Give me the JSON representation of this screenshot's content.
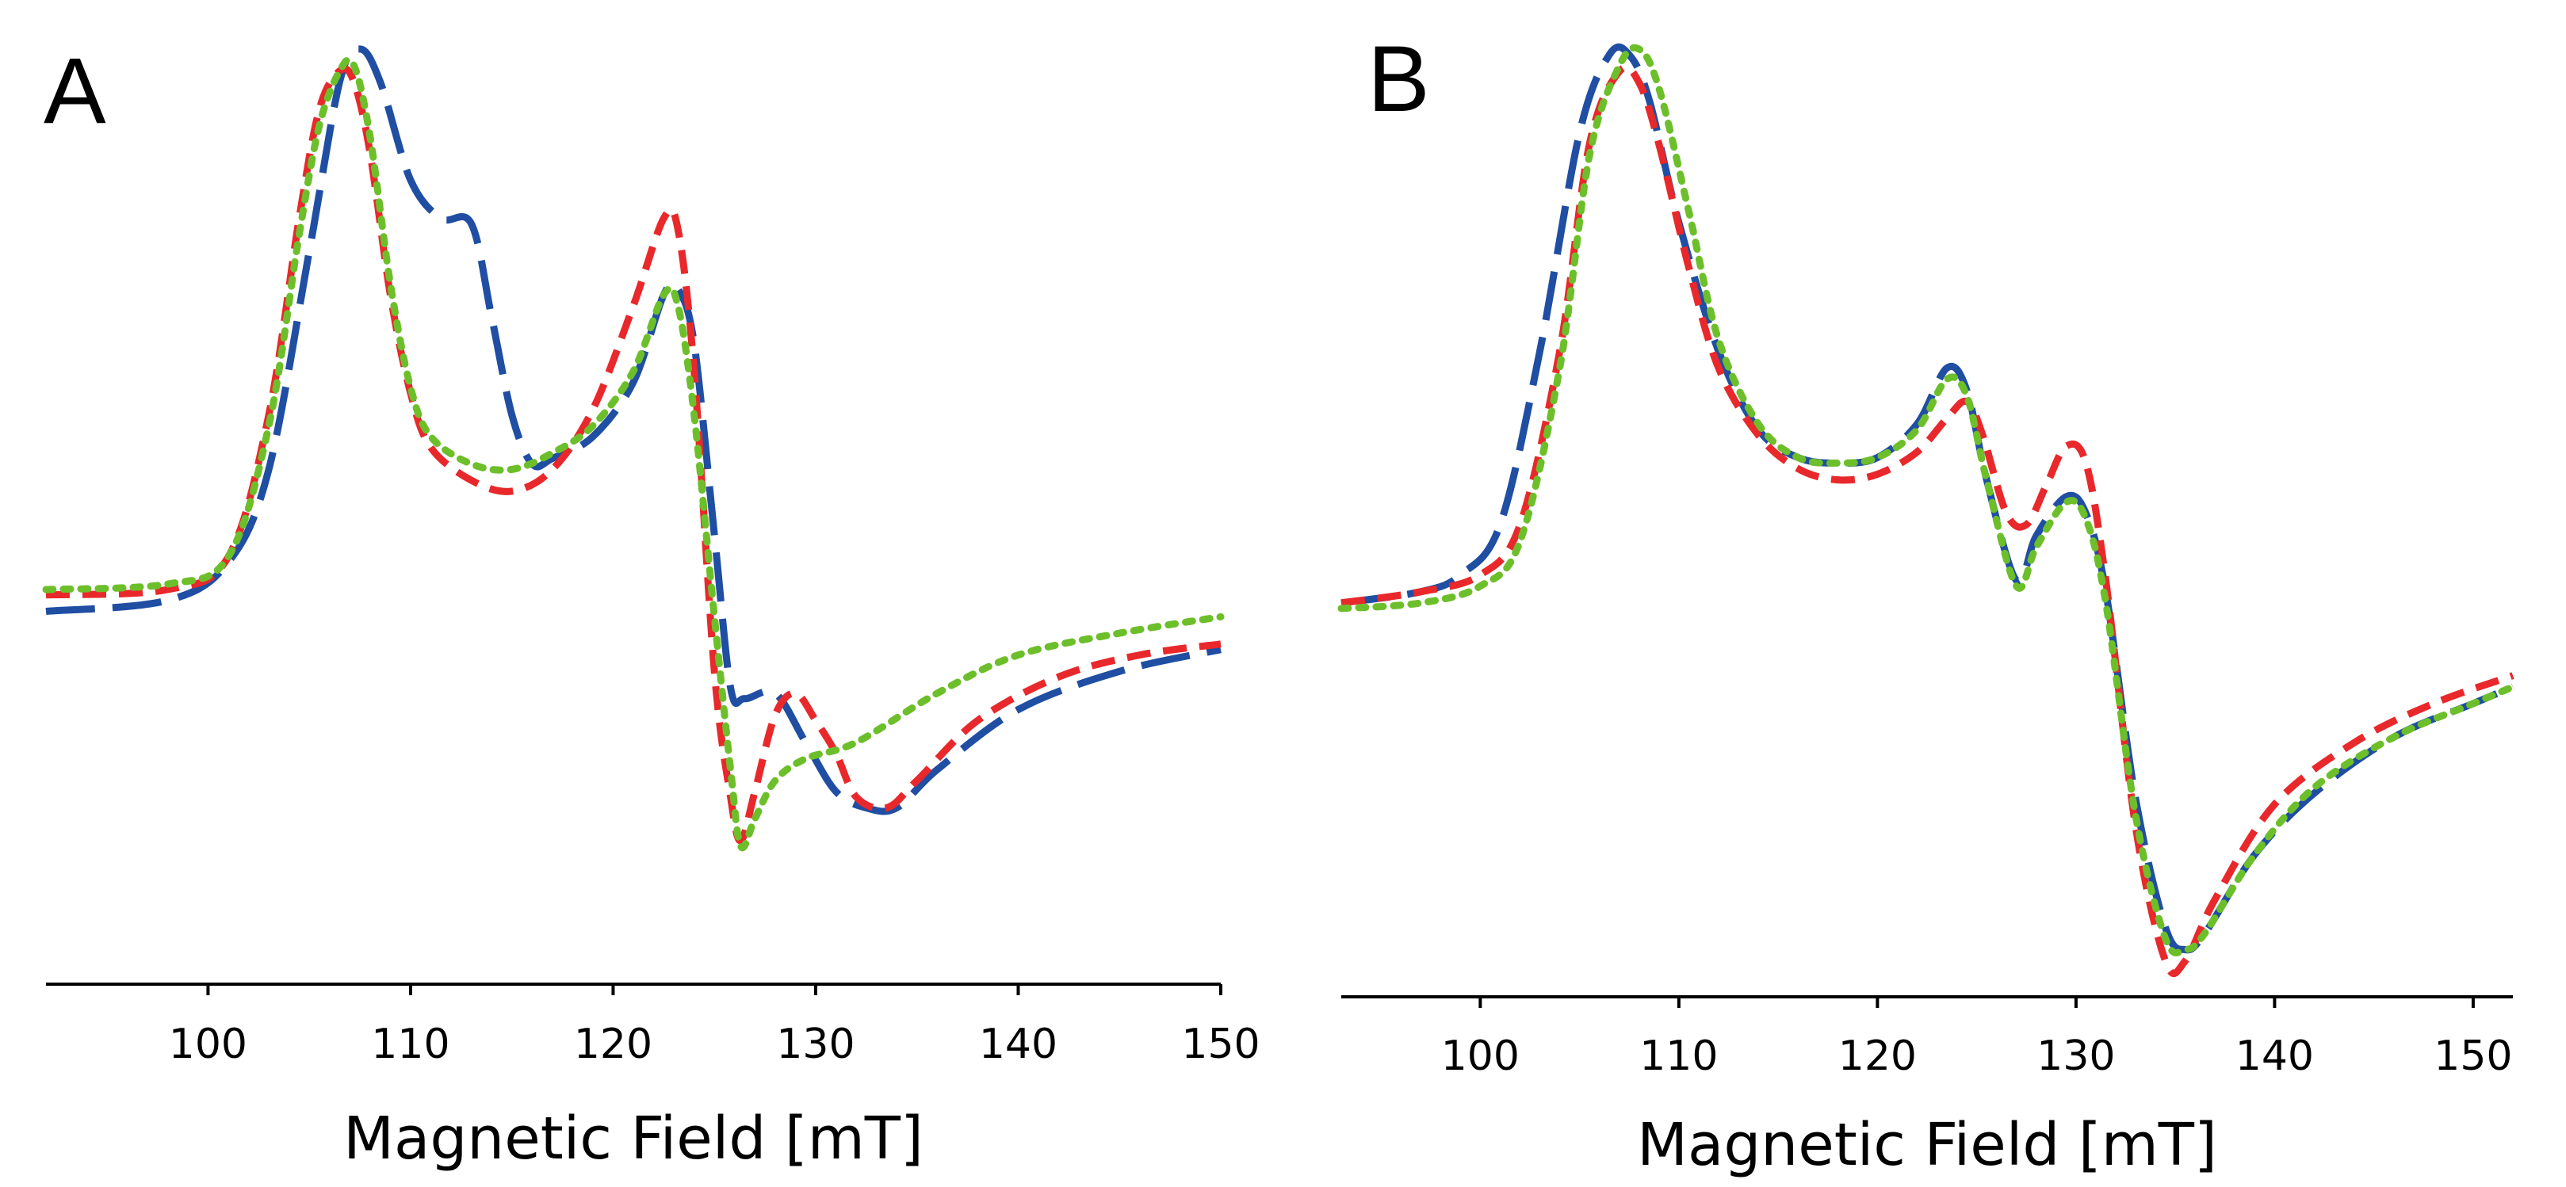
{
  "chart_data": [
    {
      "type": "line",
      "panel_label": "A",
      "xlabel": "Magnetic Field [mT]",
      "ylabel": "",
      "xlim": [
        92,
        150
      ],
      "ylim": [
        -0.72,
        1.0
      ],
      "xticks": [
        100,
        110,
        120,
        130,
        140,
        150
      ],
      "yaxis_visible": false,
      "grid": false,
      "legend": "none",
      "series": [
        {
          "color": "#1f4ea3",
          "dash": "long-dash",
          "points": [
            [
              92,
              -0.04
            ],
            [
              98,
              -0.02
            ],
            [
              101,
              0.05
            ],
            [
              103,
              0.22
            ],
            [
              105,
              0.62
            ],
            [
              106.5,
              0.93
            ],
            [
              107.5,
              0.99
            ],
            [
              108.5,
              0.93
            ],
            [
              110,
              0.75
            ],
            [
              111.5,
              0.68
            ],
            [
              113,
              0.67
            ],
            [
              114,
              0.5
            ],
            [
              115,
              0.32
            ],
            [
              116,
              0.23
            ],
            [
              117,
              0.24
            ],
            [
              119,
              0.28
            ],
            [
              121,
              0.38
            ],
            [
              122.5,
              0.54
            ],
            [
              123.2,
              0.55
            ],
            [
              124,
              0.45
            ],
            [
              125,
              0.1
            ],
            [
              125.8,
              -0.18
            ],
            [
              126.5,
              -0.2
            ],
            [
              128,
              -0.19
            ],
            [
              129.5,
              -0.28
            ],
            [
              131,
              -0.37
            ],
            [
              132.5,
              -0.4
            ],
            [
              134,
              -0.4
            ],
            [
              136,
              -0.33
            ],
            [
              140,
              -0.22
            ],
            [
              145,
              -0.15
            ],
            [
              150,
              -0.11
            ]
          ]
        },
        {
          "color": "#e8282b",
          "dash": "short-dash",
          "points": [
            [
              92,
              -0.01
            ],
            [
              98,
              0.0
            ],
            [
              101,
              0.06
            ],
            [
              103,
              0.32
            ],
            [
              104.5,
              0.68
            ],
            [
              105.5,
              0.88
            ],
            [
              106.5,
              0.95
            ],
            [
              107.2,
              0.93
            ],
            [
              108,
              0.8
            ],
            [
              109,
              0.54
            ],
            [
              110,
              0.36
            ],
            [
              111,
              0.26
            ],
            [
              113,
              0.2
            ],
            [
              115,
              0.18
            ],
            [
              117,
              0.22
            ],
            [
              119,
              0.33
            ],
            [
              121,
              0.52
            ],
            [
              122.5,
              0.68
            ],
            [
              123.2,
              0.66
            ],
            [
              124,
              0.4
            ],
            [
              125,
              -0.15
            ],
            [
              125.8,
              -0.38
            ],
            [
              126.3,
              -0.46
            ],
            [
              127,
              -0.37
            ],
            [
              128,
              -0.23
            ],
            [
              129,
              -0.19
            ],
            [
              130,
              -0.24
            ],
            [
              131,
              -0.3
            ],
            [
              132,
              -0.38
            ],
            [
              133.5,
              -0.4
            ],
            [
              135,
              -0.35
            ],
            [
              138,
              -0.24
            ],
            [
              142,
              -0.16
            ],
            [
              146,
              -0.12
            ],
            [
              150,
              -0.1
            ]
          ]
        },
        {
          "color": "#6cbf2a",
          "dash": "dotted",
          "points": [
            [
              92,
              0.0
            ],
            [
              98,
              0.01
            ],
            [
              101,
              0.06
            ],
            [
              103,
              0.3
            ],
            [
              104.5,
              0.65
            ],
            [
              105.5,
              0.85
            ],
            [
              106.5,
              0.95
            ],
            [
              107.2,
              0.96
            ],
            [
              108,
              0.83
            ],
            [
              109,
              0.56
            ],
            [
              110,
              0.37
            ],
            [
              111,
              0.28
            ],
            [
              113,
              0.23
            ],
            [
              115,
              0.22
            ],
            [
              117,
              0.25
            ],
            [
              119,
              0.3
            ],
            [
              121,
              0.4
            ],
            [
              122.5,
              0.54
            ],
            [
              123.2,
              0.52
            ],
            [
              124,
              0.32
            ],
            [
              125,
              -0.05
            ],
            [
              125.8,
              -0.33
            ],
            [
              126.3,
              -0.47
            ],
            [
              127,
              -0.42
            ],
            [
              128,
              -0.35
            ],
            [
              129.5,
              -0.31
            ],
            [
              132,
              -0.28
            ],
            [
              136,
              -0.19
            ],
            [
              140,
              -0.12
            ],
            [
              145,
              -0.08
            ],
            [
              150,
              -0.05
            ]
          ]
        }
      ]
    },
    {
      "type": "line",
      "panel_label": "B",
      "xlabel": "Magnetic Field [mT]",
      "ylabel": "",
      "xlim": [
        93,
        152
      ],
      "ylim": [
        -0.7,
        1.0
      ],
      "xticks": [
        100,
        110,
        120,
        130,
        140,
        150
      ],
      "yaxis_visible": false,
      "grid": false,
      "legend": "none",
      "series": [
        {
          "color": "#1f4ea3",
          "dash": "long-dash",
          "points": [
            [
              93,
              0.0
            ],
            [
              97,
              0.02
            ],
            [
              99,
              0.05
            ],
            [
              101,
              0.14
            ],
            [
              103,
              0.45
            ],
            [
              105,
              0.84
            ],
            [
              106.5,
              0.98
            ],
            [
              107.5,
              0.98
            ],
            [
              108.5,
              0.9
            ],
            [
              110,
              0.68
            ],
            [
              112,
              0.45
            ],
            [
              114,
              0.31
            ],
            [
              116,
              0.26
            ],
            [
              118,
              0.25
            ],
            [
              120,
              0.26
            ],
            [
              122,
              0.32
            ],
            [
              123.5,
              0.42
            ],
            [
              124.5,
              0.38
            ],
            [
              125.5,
              0.22
            ],
            [
              127,
              0.04
            ],
            [
              128,
              0.12
            ],
            [
              129.5,
              0.19
            ],
            [
              130.5,
              0.16
            ],
            [
              131.5,
              0.02
            ],
            [
              133,
              -0.35
            ],
            [
              134.5,
              -0.58
            ],
            [
              135.5,
              -0.62
            ],
            [
              136.5,
              -0.59
            ],
            [
              139,
              -0.45
            ],
            [
              142,
              -0.34
            ],
            [
              146,
              -0.24
            ],
            [
              150,
              -0.18
            ],
            [
              152,
              -0.15
            ]
          ]
        },
        {
          "color": "#e8282b",
          "dash": "short-dash",
          "points": [
            [
              93,
              0.0
            ],
            [
              97,
              0.02
            ],
            [
              100,
              0.05
            ],
            [
              102,
              0.14
            ],
            [
              104,
              0.45
            ],
            [
              105.5,
              0.82
            ],
            [
              107,
              0.95
            ],
            [
              108,
              0.93
            ],
            [
              109,
              0.82
            ],
            [
              110.5,
              0.6
            ],
            [
              112,
              0.42
            ],
            [
              114,
              0.3
            ],
            [
              116,
              0.24
            ],
            [
              118,
              0.22
            ],
            [
              120,
              0.23
            ],
            [
              122,
              0.27
            ],
            [
              123.5,
              0.33
            ],
            [
              124.5,
              0.36
            ],
            [
              125.3,
              0.3
            ],
            [
              126.5,
              0.16
            ],
            [
              127.5,
              0.14
            ],
            [
              128.5,
              0.21
            ],
            [
              129.5,
              0.28
            ],
            [
              130.5,
              0.25
            ],
            [
              131.5,
              0.04
            ],
            [
              133,
              -0.4
            ],
            [
              134.5,
              -0.64
            ],
            [
              135.5,
              -0.64
            ],
            [
              137,
              -0.53
            ],
            [
              140,
              -0.36
            ],
            [
              144,
              -0.25
            ],
            [
              148,
              -0.18
            ],
            [
              152,
              -0.13
            ]
          ]
        },
        {
          "color": "#6cbf2a",
          "dash": "dotted",
          "points": [
            [
              93,
              -0.01
            ],
            [
              97,
              0.0
            ],
            [
              100,
              0.03
            ],
            [
              102,
              0.11
            ],
            [
              104,
              0.42
            ],
            [
              105.5,
              0.8
            ],
            [
              107,
              0.96
            ],
            [
              108,
              0.99
            ],
            [
              109,
              0.92
            ],
            [
              110.5,
              0.7
            ],
            [
              112,
              0.47
            ],
            [
              114,
              0.32
            ],
            [
              116,
              0.26
            ],
            [
              118,
              0.25
            ],
            [
              120,
              0.26
            ],
            [
              122,
              0.31
            ],
            [
              123.5,
              0.4
            ],
            [
              124.5,
              0.37
            ],
            [
              125.5,
              0.22
            ],
            [
              127,
              0.03
            ],
            [
              128,
              0.1
            ],
            [
              129.5,
              0.18
            ],
            [
              130.5,
              0.15
            ],
            [
              131.5,
              0.0
            ],
            [
              133,
              -0.38
            ],
            [
              134.5,
              -0.6
            ],
            [
              135.5,
              -0.62
            ],
            [
              136.5,
              -0.59
            ],
            [
              139,
              -0.45
            ],
            [
              142,
              -0.33
            ],
            [
              146,
              -0.24
            ],
            [
              150,
              -0.18
            ],
            [
              152,
              -0.15
            ]
          ]
        }
      ]
    }
  ]
}
